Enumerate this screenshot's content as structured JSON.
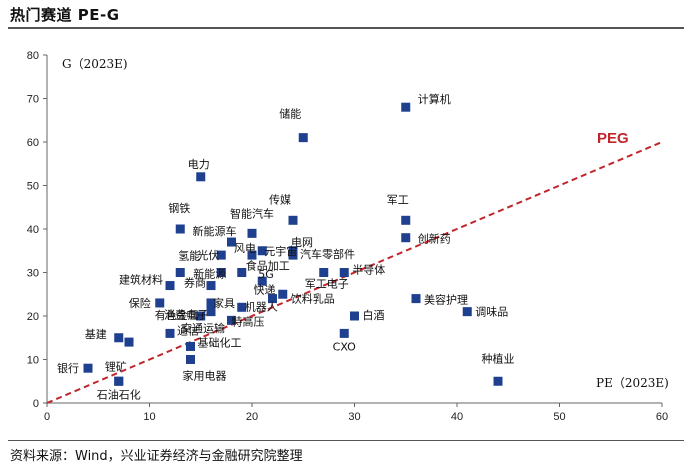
{
  "page": {
    "title": "热门赛道 PE-G",
    "source": "资料来源：Wind，兴业证券经济与金融研究院整理"
  },
  "chart_data": {
    "type": "scatter",
    "title": "热门赛道 PE-G",
    "xlabel": "PE（2023E)",
    "ylabel": "G（2023E)",
    "xlim": [
      0,
      60
    ],
    "ylim": [
      0,
      80
    ],
    "xticks": [
      "0",
      "10",
      "20",
      "30",
      "40",
      "50",
      "60"
    ],
    "yticks": [
      "0",
      "10",
      "20",
      "30",
      "40",
      "50",
      "60",
      "70",
      "80"
    ],
    "grid": false,
    "marker_color": "#1f3f8f",
    "line_color": "#c0272d",
    "peg_line": {
      "name": "PEG",
      "x": [
        0,
        60
      ],
      "y": [
        0,
        60
      ]
    },
    "points": [
      {
        "label": "计算机",
        "x": 35,
        "y": 68
      },
      {
        "label": "储能",
        "x": 25,
        "y": 61
      },
      {
        "label": "电力",
        "x": 15,
        "y": 52
      },
      {
        "label": "传媒",
        "x": 24,
        "y": 42
      },
      {
        "label": "军工",
        "x": 35,
        "y": 42
      },
      {
        "label": "钢铁",
        "x": 13,
        "y": 40
      },
      {
        "label": "智能汽车",
        "x": 20,
        "y": 39
      },
      {
        "label": "新能源车",
        "x": 18,
        "y": 37
      },
      {
        "label": "创新药",
        "x": 35,
        "y": 38
      },
      {
        "label": "元宇宙",
        "x": 21,
        "y": 35
      },
      {
        "label": "电网",
        "x": 24,
        "y": 35
      },
      {
        "label": "光伏",
        "x": 17,
        "y": 34
      },
      {
        "label": "风电",
        "x": 20,
        "y": 34
      },
      {
        "label": "汽车零部件",
        "x": 24,
        "y": 34
      },
      {
        "label": "新能源",
        "x": 13,
        "y": 30
      },
      {
        "label": "食品加工",
        "x": 19,
        "y": 30
      },
      {
        "label": "氢能",
        "x": 17,
        "y": 30
      },
      {
        "label": "半导体",
        "x": 29,
        "y": 30
      },
      {
        "label": "建筑材料",
        "x": 12,
        "y": 27
      },
      {
        "label": "券商",
        "x": 16,
        "y": 27
      },
      {
        "label": "5G",
        "x": 21,
        "y": 28
      },
      {
        "label": "军工电子",
        "x": 27,
        "y": 30
      },
      {
        "label": "保险",
        "x": 11,
        "y": 23
      },
      {
        "label": "家具",
        "x": 16,
        "y": 23
      },
      {
        "label": "美容护理",
        "x": 36,
        "y": 24
      },
      {
        "label": "快递",
        "x": 22,
        "y": 24
      },
      {
        "label": "饮料乳品",
        "x": 23,
        "y": 25
      },
      {
        "label": "消费电子",
        "x": 16,
        "y": 21
      },
      {
        "label": "机器人",
        "x": 19,
        "y": 22
      },
      {
        "label": "调味品",
        "x": 41,
        "y": 21
      },
      {
        "label": "有色金属",
        "x": 15,
        "y": 20
      },
      {
        "label": "特高压",
        "x": 18,
        "y": 19
      },
      {
        "label": "白酒",
        "x": 30,
        "y": 20
      },
      {
        "label": "通信",
        "x": 12,
        "y": 16
      },
      {
        "label": "CXO",
        "x": 29,
        "y": 16
      },
      {
        "label": "基建",
        "x": 7,
        "y": 15
      },
      {
        "label": "交通运输",
        "x": 8,
        "y": 14
      },
      {
        "label": "基础化工",
        "x": 14,
        "y": 13
      },
      {
        "label": "家用电器",
        "x": 14,
        "y": 10
      },
      {
        "label": "银行",
        "x": 4,
        "y": 8
      },
      {
        "label": "锂矿",
        "x": 7,
        "y": 5
      },
      {
        "label": "种植业",
        "x": 44,
        "y": 5
      },
      {
        "label": "石油石化",
        "x": 7,
        "y": 5
      }
    ]
  }
}
